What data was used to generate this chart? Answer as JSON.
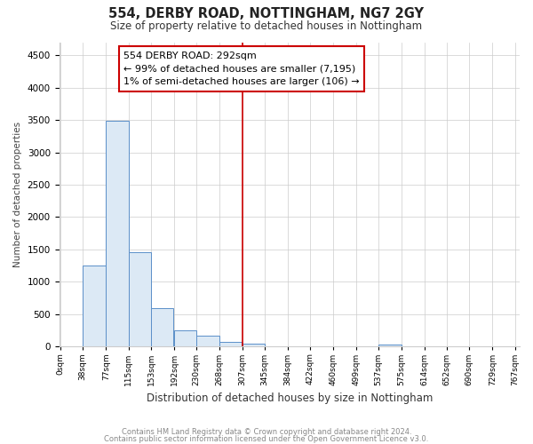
{
  "title": "554, DERBY ROAD, NOTTINGHAM, NG7 2GY",
  "subtitle": "Size of property relative to detached houses in Nottingham",
  "xlabel": "Distribution of detached houses by size in Nottingham",
  "ylabel": "Number of detached properties",
  "annotation_lines": [
    "554 DERBY ROAD: 292sqm",
    "← 99% of detached houses are smaller (7,195)",
    "1% of semi-detached houses are larger (106) →"
  ],
  "footer_line1": "Contains HM Land Registry data © Crown copyright and database right 2024.",
  "footer_line2": "Contains public sector information licensed under the Open Government Licence v3.0.",
  "bar_color": "#dce9f5",
  "bar_edge_color": "#5b8fc9",
  "vertical_line_color": "#cc0000",
  "annotation_box_edgecolor": "#cc0000",
  "vertical_line_x": 307,
  "ylim": [
    0,
    4700
  ],
  "yticks": [
    0,
    500,
    1000,
    1500,
    2000,
    2500,
    3000,
    3500,
    4000,
    4500
  ],
  "bin_edges": [
    0,
    38,
    77,
    115,
    153,
    192,
    230,
    268,
    307,
    345,
    384,
    422,
    460,
    499,
    537,
    575,
    614,
    652,
    690,
    729,
    767
  ],
  "categories": [
    "0sqm",
    "38sqm",
    "77sqm",
    "115sqm",
    "153sqm",
    "192sqm",
    "230sqm",
    "268sqm",
    "307sqm",
    "345sqm",
    "384sqm",
    "422sqm",
    "460sqm",
    "499sqm",
    "537sqm",
    "575sqm",
    "614sqm",
    "652sqm",
    "690sqm",
    "729sqm",
    "767sqm"
  ],
  "values": [
    0,
    1250,
    3480,
    1460,
    590,
    250,
    170,
    80,
    40,
    0,
    0,
    0,
    0,
    0,
    30,
    0,
    0,
    0,
    0,
    0
  ]
}
